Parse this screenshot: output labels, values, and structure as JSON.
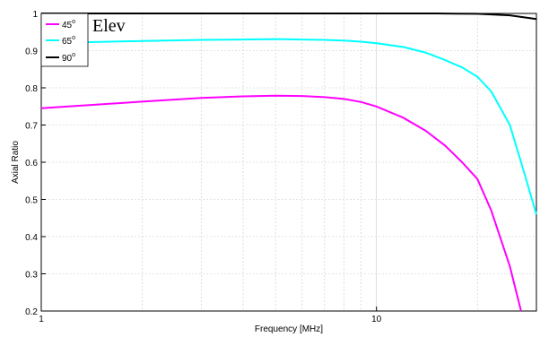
{
  "chart_data": {
    "type": "line",
    "title": "",
    "xlabel": "Frequency [MHz]",
    "ylabel": "Axial Ratio",
    "xscale": "log",
    "xlim": [
      1,
      30
    ],
    "ylim": [
      0.2,
      1
    ],
    "x_ticks": [
      1,
      10
    ],
    "x_tick_labels": [
      "1",
      "10"
    ],
    "y_ticks": [
      0.2,
      0.3,
      0.4,
      0.5,
      0.6,
      0.7,
      0.8,
      0.9,
      1
    ],
    "y_tick_labels": [
      "0.2",
      "0.3",
      "0.4",
      "0.5",
      "0.6",
      "0.7",
      "0.8",
      "0.9",
      "1"
    ],
    "grid": true,
    "legend_position": "top-left",
    "annotation": "Elev",
    "legend_degree_mark": "o",
    "series": [
      {
        "name": "45",
        "color": "#ff00ff",
        "x": [
          1,
          2,
          3,
          4,
          5,
          6,
          7,
          8,
          9,
          10,
          12,
          14,
          16,
          18,
          20,
          22,
          25,
          27
        ],
        "y": [
          0.745,
          0.763,
          0.773,
          0.777,
          0.779,
          0.778,
          0.775,
          0.77,
          0.762,
          0.75,
          0.72,
          0.685,
          0.645,
          0.6,
          0.555,
          0.47,
          0.32,
          0.2
        ]
      },
      {
        "name": "65",
        "color": "#00ffff",
        "x": [
          1,
          2,
          3,
          4,
          5,
          6,
          7,
          8,
          9,
          10,
          12,
          14,
          16,
          18,
          20,
          22,
          25,
          27,
          30
        ],
        "y": [
          0.92,
          0.926,
          0.929,
          0.93,
          0.931,
          0.93,
          0.929,
          0.927,
          0.924,
          0.92,
          0.91,
          0.895,
          0.875,
          0.855,
          0.83,
          0.79,
          0.7,
          0.6,
          0.46
        ]
      },
      {
        "name": "90",
        "color": "#000000",
        "x": [
          1,
          2,
          5,
          10,
          15,
          20,
          25,
          30
        ],
        "y": [
          1,
          1,
          1,
          1,
          1,
          0.999,
          0.995,
          0.985
        ]
      }
    ]
  }
}
